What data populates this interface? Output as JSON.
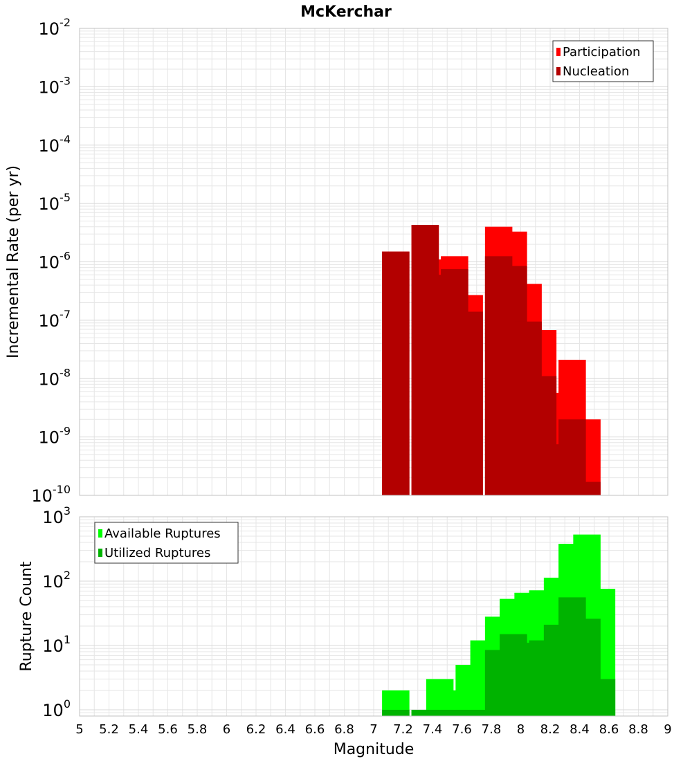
{
  "title": "McKerchar",
  "colors": {
    "participation": "#ff0000",
    "nucleation": "#b30000",
    "available": "#00ff00",
    "utilized": "#00b300",
    "grid": "#e6e6e6",
    "frame": "#c0c0c0"
  },
  "chart_data": [
    {
      "type": "bar",
      "yscale": "log",
      "ylabel": "Incremental Rate (per yr)",
      "xlabel": "",
      "xlim": [
        5,
        9
      ],
      "ylim": [
        1e-10,
        0.01
      ],
      "y_ticks": [
        {
          "base": "10",
          "exp": "-10",
          "value": 1e-10
        },
        {
          "base": "10",
          "exp": "-9",
          "value": 1e-09
        },
        {
          "base": "10",
          "exp": "-8",
          "value": 1e-08
        },
        {
          "base": "10",
          "exp": "-7",
          "value": 1e-07
        },
        {
          "base": "10",
          "exp": "-6",
          "value": 1e-06
        },
        {
          "base": "10",
          "exp": "-5",
          "value": 1e-05
        },
        {
          "base": "10",
          "exp": "-4",
          "value": 0.0001
        },
        {
          "base": "10",
          "exp": "-3",
          "value": 0.001
        },
        {
          "base": "10",
          "exp": "-2",
          "value": 0.01
        }
      ],
      "legend_position": "top-right",
      "grid": true,
      "x": [
        7.15,
        7.35,
        7.45,
        7.55,
        7.65,
        7.85,
        7.95,
        8.05,
        8.15,
        8.25,
        8.35,
        8.45
      ],
      "series": [
        {
          "name": "Participation",
          "color": "#ff0000",
          "values": [
            1.5e-06,
            4.3e-06,
            1.1e-06,
            1.25e-06,
            2.7e-07,
            4e-06,
            3.3e-06,
            4.2e-07,
            6.8e-08,
            5.7e-09,
            2.1e-08,
            2e-09
          ]
        },
        {
          "name": "Nucleation",
          "color": "#b30000",
          "values": [
            1.5e-06,
            4.3e-06,
            6e-07,
            7.5e-07,
            1.4e-07,
            1.25e-06,
            8.5e-07,
            9.5e-08,
            1.1e-08,
            7.5e-10,
            2e-09,
            1.7e-10
          ]
        }
      ]
    },
    {
      "type": "bar",
      "yscale": "log",
      "ylabel": "Rupture Count",
      "xlabel": "Magnitude",
      "xlim": [
        5,
        9
      ],
      "ylim": [
        0.8,
        1000
      ],
      "y_ticks": [
        {
          "base": "10",
          "exp": "0",
          "value": 1
        },
        {
          "base": "10",
          "exp": "1",
          "value": 10
        },
        {
          "base": "10",
          "exp": "2",
          "value": 100
        },
        {
          "base": "10",
          "exp": "3",
          "value": 1000
        }
      ],
      "x_tick_labels": [
        "5",
        "5.2",
        "5.4",
        "5.6",
        "5.8",
        "6",
        "6.2",
        "6.4",
        "6.6",
        "6.8",
        "7",
        "7.2",
        "7.4",
        "7.6",
        "7.8",
        "8",
        "8.2",
        "8.4",
        "8.6",
        "8.8",
        "9"
      ],
      "legend_position": "top-left",
      "grid": true,
      "x": [
        7.15,
        7.35,
        7.45,
        7.55,
        7.65,
        7.75,
        7.85,
        7.95,
        8.05,
        8.15,
        8.25,
        8.35,
        8.45,
        8.55
      ],
      "series": [
        {
          "name": "Available Ruptures",
          "color": "#00ff00",
          "values": [
            2,
            1,
            3,
            2,
            5,
            12,
            28,
            53,
            66,
            72,
            113,
            380,
            530,
            76
          ]
        },
        {
          "name": "Utilized Ruptures",
          "color": "#00b300",
          "values": [
            1,
            1,
            1,
            1,
            1,
            1,
            8.5,
            15,
            11,
            12,
            21,
            56,
            26,
            3
          ]
        }
      ]
    }
  ]
}
